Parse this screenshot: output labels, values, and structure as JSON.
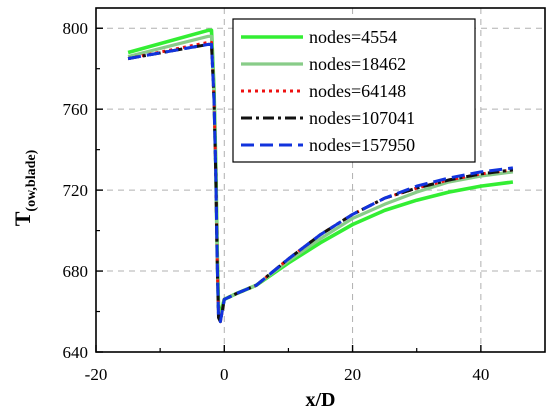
{
  "chart_data": {
    "type": "line",
    "xlabel": "x/D",
    "ylabel_main": "T",
    "ylabel_sub": "(ow,blade)",
    "xlim": [
      -20,
      50
    ],
    "ylim": [
      640,
      810
    ],
    "xticks": [
      -20,
      0,
      20,
      40
    ],
    "yticks": [
      640,
      680,
      720,
      760,
      800
    ],
    "grid": true,
    "legend_position": "top-right",
    "series": [
      {
        "name": "nodes=4554",
        "color": "#33ee33",
        "style": "solid",
        "points": [
          [
            -15,
            788
          ],
          [
            -2.5,
            799
          ],
          [
            -2.0,
            799
          ],
          [
            -1.6,
            770
          ],
          [
            -1.3,
            730
          ],
          [
            -1.1,
            690
          ],
          [
            -0.9,
            662
          ],
          [
            -0.6,
            659
          ],
          [
            0,
            666
          ],
          [
            2,
            669
          ],
          [
            5,
            673
          ],
          [
            10,
            684
          ],
          [
            15,
            694
          ],
          [
            20,
            703
          ],
          [
            25,
            710
          ],
          [
            30,
            715
          ],
          [
            35,
            719
          ],
          [
            40,
            722
          ],
          [
            45,
            724
          ]
        ]
      },
      {
        "name": "nodes=18462",
        "color": "#88cc88",
        "style": "solid",
        "points": [
          [
            -15,
            786
          ],
          [
            -2.5,
            796
          ],
          [
            -2.0,
            796
          ],
          [
            -1.6,
            768
          ],
          [
            -1.3,
            728
          ],
          [
            -1.1,
            688
          ],
          [
            -0.9,
            660
          ],
          [
            -0.6,
            657
          ],
          [
            0,
            666
          ],
          [
            2,
            669
          ],
          [
            5,
            673
          ],
          [
            10,
            685
          ],
          [
            15,
            696
          ],
          [
            20,
            706
          ],
          [
            25,
            713
          ],
          [
            30,
            719
          ],
          [
            35,
            724
          ],
          [
            40,
            727
          ],
          [
            45,
            729
          ]
        ]
      },
      {
        "name": "nodes=64148",
        "color": "#ee1111",
        "style": "dotted",
        "points": [
          [
            -15,
            785
          ],
          [
            -2.5,
            793
          ],
          [
            -2.0,
            793
          ],
          [
            -1.6,
            766
          ],
          [
            -1.3,
            726
          ],
          [
            -1.1,
            686
          ],
          [
            -0.9,
            658
          ],
          [
            -0.6,
            655
          ],
          [
            0,
            666
          ],
          [
            2,
            669
          ],
          [
            5,
            673
          ],
          [
            10,
            686
          ],
          [
            15,
            698
          ],
          [
            20,
            708
          ],
          [
            25,
            716
          ],
          [
            30,
            721
          ],
          [
            35,
            725
          ],
          [
            40,
            728
          ],
          [
            45,
            730
          ]
        ]
      },
      {
        "name": "nodes=107041",
        "color": "#111111",
        "style": "dashdot",
        "points": [
          [
            -15,
            785
          ],
          [
            -2.5,
            792
          ],
          [
            -2.0,
            792
          ],
          [
            -1.6,
            765
          ],
          [
            -1.3,
            725
          ],
          [
            -1.1,
            685
          ],
          [
            -0.9,
            657
          ],
          [
            -0.6,
            655
          ],
          [
            0,
            666
          ],
          [
            2,
            669
          ],
          [
            5,
            673
          ],
          [
            10,
            686
          ],
          [
            15,
            698
          ],
          [
            20,
            708
          ],
          [
            25,
            716
          ],
          [
            30,
            721
          ],
          [
            35,
            725
          ],
          [
            40,
            728
          ],
          [
            45,
            730
          ]
        ]
      },
      {
        "name": "nodes=157950",
        "color": "#1133dd",
        "style": "dashed",
        "points": [
          [
            -15,
            785
          ],
          [
            -2.5,
            792
          ],
          [
            -2.0,
            792
          ],
          [
            -1.6,
            765
          ],
          [
            -1.3,
            725
          ],
          [
            -1.1,
            685
          ],
          [
            -0.9,
            657
          ],
          [
            -0.6,
            655
          ],
          [
            0,
            666
          ],
          [
            2,
            669
          ],
          [
            5,
            673
          ],
          [
            10,
            686
          ],
          [
            15,
            698
          ],
          [
            20,
            708
          ],
          [
            25,
            716
          ],
          [
            30,
            722
          ],
          [
            35,
            726
          ],
          [
            40,
            729
          ],
          [
            45,
            731
          ]
        ]
      }
    ]
  }
}
